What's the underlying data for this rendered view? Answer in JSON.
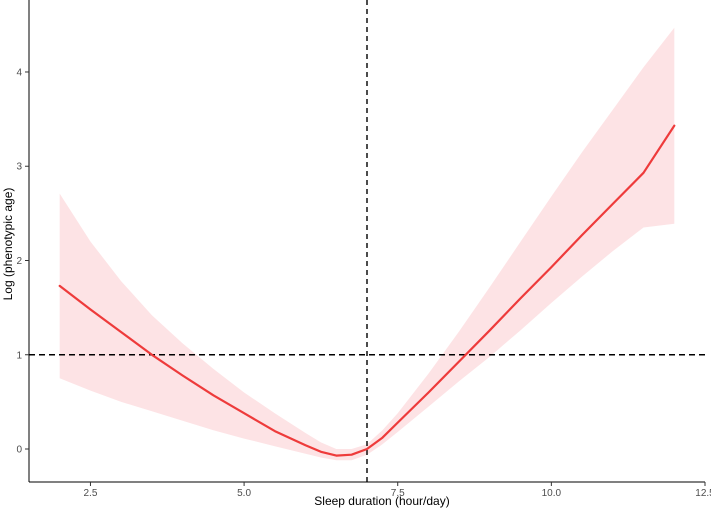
{
  "chart_data": {
    "type": "line",
    "title": "",
    "xlabel": "Sleep duration (hour/day)",
    "ylabel": "Log (phenotypic age)",
    "xlim": [
      1.5,
      12.5
    ],
    "ylim": [
      -0.35,
      4.7
    ],
    "x_ticks": [
      2.5,
      5.0,
      7.5,
      10.0,
      12.5
    ],
    "x_tick_labels": [
      "2.5",
      "5.0",
      "7.5",
      "10.0",
      "12.5"
    ],
    "y_ticks": [
      0,
      1,
      2,
      3,
      4
    ],
    "y_tick_labels": [
      "0",
      "1",
      "2",
      "3",
      "4"
    ],
    "grid": false,
    "reference_lines": {
      "vertical_x": 7.0,
      "horizontal_y": 1.0,
      "style": "dashed"
    },
    "colors": {
      "line": "#ee3b3b",
      "band": "#fde3e5",
      "reference": "#000000",
      "axis": "#000000"
    },
    "series": [
      {
        "x": [
          2.0,
          2.5,
          3.0,
          3.5,
          4.0,
          4.5,
          5.0,
          5.5,
          6.0,
          6.25,
          6.5,
          6.75,
          7.0,
          7.25,
          7.5,
          8.0,
          8.5,
          9.0,
          9.5,
          10.0,
          10.5,
          11.0,
          11.5,
          12.0
        ],
        "y": [
          1.73,
          1.48,
          1.24,
          1.0,
          0.78,
          0.57,
          0.38,
          0.19,
          0.04,
          -0.03,
          -0.07,
          -0.06,
          0.0,
          0.12,
          0.28,
          0.6,
          0.93,
          1.26,
          1.6,
          1.93,
          2.27,
          2.6,
          2.93,
          3.43
        ],
        "lower": [
          0.75,
          0.62,
          0.5,
          0.4,
          0.3,
          0.2,
          0.11,
          0.03,
          -0.05,
          -0.09,
          -0.12,
          -0.12,
          -0.06,
          0.05,
          0.18,
          0.45,
          0.72,
          0.98,
          1.26,
          1.55,
          1.83,
          2.1,
          2.35,
          2.39
        ],
        "upper": [
          2.71,
          2.2,
          1.78,
          1.42,
          1.12,
          0.85,
          0.6,
          0.38,
          0.17,
          0.07,
          0.0,
          0.0,
          0.05,
          0.2,
          0.38,
          0.8,
          1.25,
          1.72,
          2.2,
          2.68,
          3.15,
          3.6,
          4.05,
          4.47
        ]
      }
    ]
  }
}
